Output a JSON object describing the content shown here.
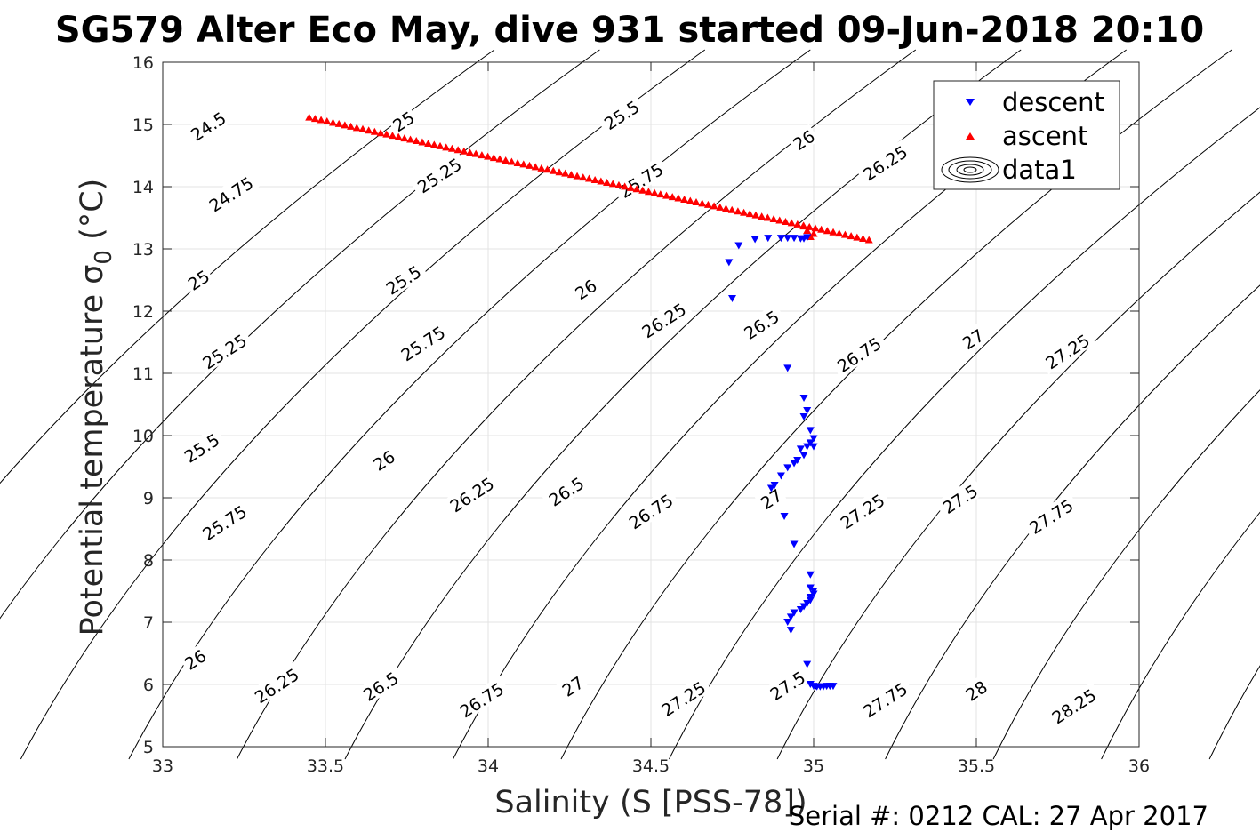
{
  "chart_data": {
    "type": "scatter",
    "title": "SG579 Alter Eco May, dive 931 started 09-Jun-2018 20:10",
    "xlabel": "Salinity (S [PSS-78])",
    "ylabel_main": "Potential temperature ",
    "ylabel_sigma": "σ",
    "ylabel_sub": "0",
    "ylabel_unit": " (°C)",
    "footer": "Serial #: 0212  CAL: 27 Apr 2017",
    "xlim": [
      33,
      36
    ],
    "ylim": [
      5,
      16
    ],
    "x_ticks": [
      33,
      33.5,
      34,
      34.5,
      35,
      35.5,
      36
    ],
    "x_tick_labels": [
      "33",
      "33.5",
      "34",
      "34.5",
      "35",
      "35.5",
      "36"
    ],
    "y_ticks": [
      5,
      6,
      7,
      8,
      9,
      10,
      11,
      12,
      13,
      14,
      15,
      16
    ],
    "y_tick_labels": [
      "5",
      "6",
      "7",
      "8",
      "9",
      "10",
      "11",
      "12",
      "13",
      "14",
      "15",
      "16"
    ],
    "grid": true,
    "legend_position": "top-right",
    "legend": [
      {
        "label": "descent",
        "marker": "triangle-down",
        "color": "#0000ff"
      },
      {
        "label": "ascent",
        "marker": "triangle-up",
        "color": "#ff0000"
      },
      {
        "label": "data1",
        "marker": "contour",
        "color": "#000000"
      }
    ],
    "contours": {
      "levels": [
        24.5,
        24.75,
        25,
        25.25,
        25.5,
        25.75,
        26,
        26.25,
        26.5,
        26.75,
        27,
        27.25,
        27.5,
        27.75,
        28,
        28.25
      ],
      "labels": [
        {
          "text": "24.5",
          "s": 33.14,
          "t": 14.97
        },
        {
          "text": "24.75",
          "s": 33.21,
          "t": 13.88
        },
        {
          "text": "25",
          "s": 33.11,
          "t": 12.5
        },
        {
          "text": "25.25",
          "s": 33.19,
          "t": 11.35
        },
        {
          "text": "25.5",
          "s": 33.12,
          "t": 9.8
        },
        {
          "text": "25.75",
          "s": 33.19,
          "t": 8.6
        },
        {
          "text": "26",
          "s": 33.1,
          "t": 6.4
        },
        {
          "text": "26.25",
          "s": 33.35,
          "t": 5.98
        },
        {
          "text": "26.5",
          "s": 33.67,
          "t": 5.97
        },
        {
          "text": "26.75",
          "s": 33.98,
          "t": 5.75
        },
        {
          "text": "27",
          "s": 34.26,
          "t": 5.97
        },
        {
          "text": "27.25",
          "s": 34.6,
          "t": 5.77
        },
        {
          "text": "27.5",
          "s": 34.92,
          "t": 5.98
        },
        {
          "text": "27.75",
          "s": 35.22,
          "t": 5.75
        },
        {
          "text": "28",
          "s": 35.5,
          "t": 5.9
        },
        {
          "text": "28.25",
          "s": 35.8,
          "t": 5.65
        },
        {
          "text": "25",
          "s": 33.74,
          "t": 15.05
        },
        {
          "text": "25.25",
          "s": 33.85,
          "t": 14.18
        },
        {
          "text": "25.5",
          "s": 33.74,
          "t": 12.5
        },
        {
          "text": "25.75",
          "s": 33.8,
          "t": 11.48
        },
        {
          "text": "26",
          "s": 33.68,
          "t": 9.6
        },
        {
          "text": "26.25",
          "s": 33.95,
          "t": 9.05
        },
        {
          "text": "25.5",
          "s": 34.41,
          "t": 15.15
        },
        {
          "text": "25.75",
          "s": 34.47,
          "t": 14.1
        },
        {
          "text": "26",
          "s": 34.3,
          "t": 12.35
        },
        {
          "text": "26.25",
          "s": 34.54,
          "t": 11.85
        },
        {
          "text": "26.5",
          "s": 34.24,
          "t": 9.1
        },
        {
          "text": "26.75",
          "s": 34.5,
          "t": 8.78
        },
        {
          "text": "26",
          "s": 34.97,
          "t": 14.75
        },
        {
          "text": "26.25",
          "s": 35.22,
          "t": 14.38
        },
        {
          "text": "26.5",
          "s": 34.84,
          "t": 11.78
        },
        {
          "text": "26.75",
          "s": 35.14,
          "t": 11.3
        },
        {
          "text": "27",
          "s": 34.87,
          "t": 8.98
        },
        {
          "text": "27.25",
          "s": 35.15,
          "t": 8.78
        },
        {
          "text": "27",
          "s": 35.49,
          "t": 11.55
        },
        {
          "text": "27.25",
          "s": 35.78,
          "t": 11.35
        },
        {
          "text": "27.5",
          "s": 35.45,
          "t": 8.98
        },
        {
          "text": "27.75",
          "s": 35.73,
          "t": 8.7
        }
      ]
    },
    "series": [
      {
        "name": "descent",
        "marker": "triangle-down",
        "color": "#0000ff",
        "points": [
          [
            34.75,
            12.2
          ],
          [
            34.74,
            12.78
          ],
          [
            34.77,
            13.05
          ],
          [
            34.82,
            13.15
          ],
          [
            34.86,
            13.17
          ],
          [
            34.9,
            13.17
          ],
          [
            34.92,
            13.17
          ],
          [
            34.94,
            13.17
          ],
          [
            34.96,
            13.16
          ],
          [
            34.97,
            13.16
          ],
          [
            34.98,
            13.18
          ],
          [
            34.92,
            11.08
          ],
          [
            34.97,
            10.6
          ],
          [
            34.98,
            10.4
          ],
          [
            34.97,
            10.3
          ],
          [
            34.99,
            10.08
          ],
          [
            35.0,
            9.95
          ],
          [
            34.99,
            9.88
          ],
          [
            35.0,
            9.82
          ],
          [
            34.98,
            9.82
          ],
          [
            34.96,
            9.78
          ],
          [
            34.97,
            9.68
          ],
          [
            34.95,
            9.6
          ],
          [
            34.94,
            9.55
          ],
          [
            34.92,
            9.48
          ],
          [
            34.9,
            9.35
          ],
          [
            34.88,
            9.2
          ],
          [
            34.87,
            9.15
          ],
          [
            34.91,
            8.7
          ],
          [
            34.94,
            8.25
          ],
          [
            34.99,
            7.76
          ],
          [
            34.99,
            7.55
          ],
          [
            35.0,
            7.5
          ],
          [
            35.0,
            7.45
          ],
          [
            34.99,
            7.4
          ],
          [
            34.99,
            7.35
          ],
          [
            34.98,
            7.3
          ],
          [
            34.97,
            7.25
          ],
          [
            34.96,
            7.2
          ],
          [
            34.94,
            7.15
          ],
          [
            34.93,
            7.08
          ],
          [
            34.92,
            7.0
          ],
          [
            34.93,
            6.87
          ],
          [
            34.98,
            6.32
          ],
          [
            34.99,
            6.0
          ],
          [
            35.0,
            5.97
          ],
          [
            35.01,
            5.96
          ],
          [
            35.02,
            5.96
          ],
          [
            35.03,
            5.96
          ],
          [
            35.04,
            5.97
          ],
          [
            35.05,
            5.97
          ],
          [
            35.06,
            5.97
          ]
        ]
      },
      {
        "name": "ascent",
        "marker": "triangle-up",
        "color": "#ff0000",
        "line": [
          [
            33.45,
            15.12
          ],
          [
            35.17,
            13.15
          ]
        ],
        "count": 95,
        "extra_points": [
          [
            34.97,
            13.37
          ],
          [
            34.98,
            13.3
          ],
          [
            34.99,
            13.2
          ],
          [
            35.0,
            13.25
          ]
        ]
      }
    ]
  }
}
